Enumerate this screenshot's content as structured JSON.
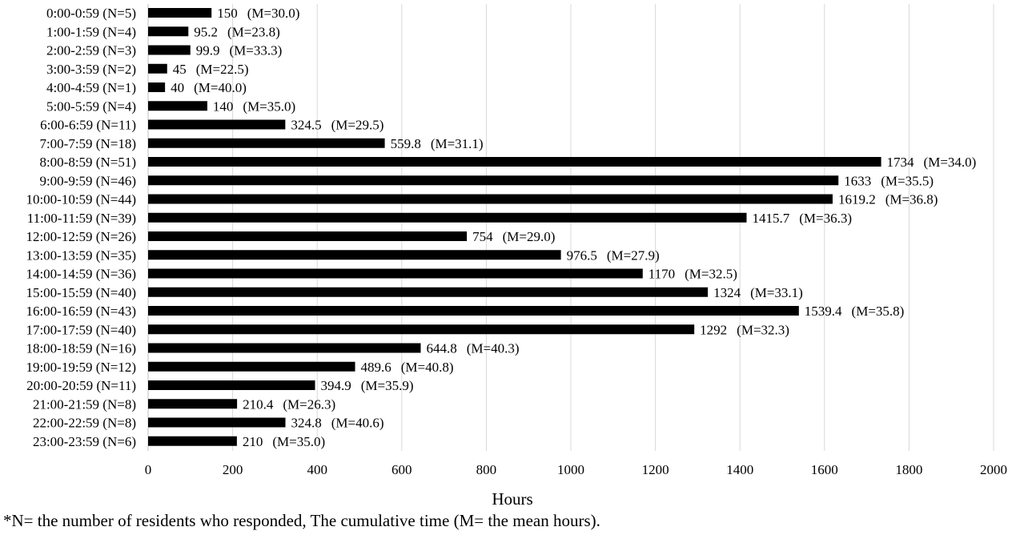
{
  "chart_data": {
    "type": "bar",
    "orientation": "horizontal",
    "categories": [
      "0:00-0:59 (N=5)",
      "1:00-1:59 (N=4)",
      "2:00-2:59 (N=3)",
      "3:00-3:59 (N=2)",
      "4:00-4:59 (N=1)",
      "5:00-5:59 (N=4)",
      "6:00-6:59 (N=11)",
      "7:00-7:59 (N=18)",
      "8:00-8:59 (N=51)",
      "9:00-9:59 (N=46)",
      "10:00-10:59 (N=44)",
      "11:00-11:59 (N=39)",
      "12:00-12:59 (N=26)",
      "13:00-13:59 (N=35)",
      "14:00-14:59 (N=36)",
      "15:00-15:59 (N=40)",
      "16:00-16:59 (N=43)",
      "17:00-17:59 (N=40)",
      "18:00-18:59 (N=16)",
      "19:00-19:59 (N=12)",
      "20:00-20:59 (N=11)",
      "21:00-21:59 (N=8)",
      "22:00-22:59 (N=8)",
      "23:00-23:59 (N=6)"
    ],
    "values": [
      150,
      95.2,
      99.9,
      45,
      40,
      140,
      324.5,
      559.8,
      1734,
      1633,
      1619.2,
      1415.7,
      754,
      976.5,
      1170,
      1324,
      1539.4,
      1292,
      644.8,
      489.6,
      394.9,
      210.4,
      324.8,
      210
    ],
    "value_labels": [
      "150",
      "95.2",
      "99.9",
      "45",
      "40",
      "140",
      "324.5",
      "559.8",
      "1734",
      "1633",
      "1619.2",
      "1415.7",
      "754",
      "976.5",
      "1170",
      "1324",
      "1539.4",
      "1292",
      "644.8",
      "489.6",
      "394.9",
      "210.4",
      "324.8",
      "210"
    ],
    "mean_labels": [
      "(M=30.0)",
      "(M=23.8)",
      "(M=33.3)",
      "(M=22.5)",
      "(M=40.0)",
      "(M=35.0)",
      "(M=29.5)",
      "(M=31.1)",
      "(M=34.0)",
      "(M=35.5)",
      "(M=36.8)",
      "(M=36.3)",
      "(M=29.0)",
      "(M=27.9)",
      "(M=32.5)",
      "(M=33.1)",
      "(M=35.8)",
      "(M=32.3)",
      "(M=40.3)",
      "(M=40.8)",
      "(M=35.9)",
      "(M=26.3)",
      "(M=40.6)",
      "(M=35.0)"
    ],
    "x_ticks": [
      0,
      200,
      400,
      600,
      800,
      1000,
      1200,
      1400,
      1600,
      1800,
      2000
    ],
    "xlim": [
      0,
      2000
    ],
    "xlabel": "Hours",
    "ylabel": "",
    "title": "",
    "grid": "vertical",
    "colors": {
      "bar": "#000000",
      "grid": "#d9d9d9"
    }
  },
  "footnote": "*N= the number of residents who responded, The cumulative time (M= the mean hours)."
}
